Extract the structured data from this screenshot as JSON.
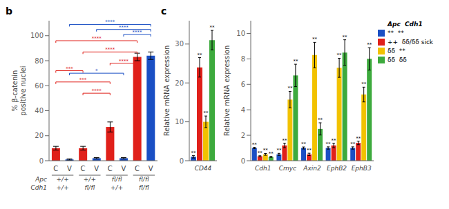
{
  "chart_data": [
    {
      "type": "bar",
      "title": "b",
      "categories": [
        "C",
        "V",
        "C",
        "V",
        "C",
        "V",
        "C",
        "V"
      ],
      "values": [
        10,
        1,
        10,
        2,
        27,
        2,
        83,
        84
      ],
      "errors": [
        1.5,
        0.5,
        1.5,
        0.5,
        4,
        0.5,
        3,
        3
      ],
      "colors": [
        "#E0201A",
        "#1A4FC4",
        "#E0201A",
        "#1A4FC4",
        "#E0201A",
        "#1A4FC4",
        "#E0201A",
        "#1A4FC4"
      ],
      "ylabel": "% β-catenin\npositive nuclei",
      "ylim": [
        0,
        112
      ],
      "yticks": [
        0,
        20,
        40,
        60,
        80,
        100
      ],
      "grid": false,
      "x_groups": [
        {
          "name": "Apc",
          "labels": [
            "+/+",
            "+/+",
            "fl/fl",
            "fl/fl"
          ]
        },
        {
          "name": "Cdh1",
          "labels": [
            "+/+",
            "fl/fl",
            "+/+",
            "fl/fl"
          ]
        }
      ],
      "annotations": [
        {
          "x1": 0,
          "x2": 2,
          "y": 72,
          "text": "***",
          "color": "#E0201A"
        },
        {
          "x1": 0,
          "x2": 4,
          "y": 63,
          "text": "***",
          "color": "#E0201A"
        },
        {
          "x1": 0,
          "x2": 6,
          "y": 96,
          "text": "****",
          "color": "#E0201A"
        },
        {
          "x1": 2,
          "x2": 4,
          "y": 54,
          "text": "****",
          "color": "#E0201A"
        },
        {
          "x1": 2,
          "x2": 6,
          "y": 87,
          "text": "****",
          "color": "#E0201A"
        },
        {
          "x1": 4,
          "x2": 6,
          "y": 78,
          "text": "****",
          "color": "#E0201A"
        },
        {
          "x1": 1,
          "x2": 7,
          "y": 109,
          "text": "****",
          "color": "#1A4FC4"
        },
        {
          "x1": 3,
          "x2": 7,
          "y": 105,
          "text": "****",
          "color": "#1A4FC4"
        },
        {
          "x1": 5,
          "x2": 7,
          "y": 101,
          "text": "****",
          "color": "#1A4FC4"
        },
        {
          "x1": 1,
          "x2": 5,
          "y": 70,
          "text": "*",
          "color": "#1A4FC4"
        }
      ]
    },
    {
      "type": "bar",
      "title": "c",
      "categories": [
        "CD44"
      ],
      "ylabel": "Relative mRNA expression",
      "ylim": [
        0,
        36
      ],
      "yticks": [
        0,
        10,
        20,
        30
      ],
      "grid": false,
      "series": [
        {
          "color": "#1A4FC4",
          "values": [
            1
          ],
          "errors": [
            0.3
          ],
          "annotations": [
            "**"
          ]
        },
        {
          "color": "#E0201A",
          "values": [
            24
          ],
          "errors": [
            2.5
          ],
          "annotations": [
            "**"
          ]
        },
        {
          "color": "#F2C200",
          "values": [
            10
          ],
          "errors": [
            1.5
          ],
          "annotations": [
            "**"
          ]
        },
        {
          "color": "#3DAA3D",
          "values": [
            31
          ],
          "errors": [
            2.5
          ],
          "annotations": [
            "**"
          ]
        }
      ]
    },
    {
      "type": "bar",
      "categories": [
        "Cdh1",
        "Cmyc",
        "Axin2",
        "EphB2",
        "EphB3"
      ],
      "ylabel": "Relative mRNA expression",
      "ylim": [
        0,
        11
      ],
      "yticks": [
        0,
        2,
        4,
        6,
        8,
        10
      ],
      "grid": false,
      "legend": "upper right",
      "legend_title": "Apc  Cdh1",
      "series": [
        {
          "name": "**  **",
          "color": "#1A4FC4",
          "values": [
            1.0,
            0.5,
            1.0,
            1.0,
            1.0
          ],
          "errors": [
            0.05,
            0.08,
            0.08,
            0.09,
            0.09
          ],
          "annotations": [
            "**",
            "**",
            "**",
            "**",
            "**"
          ]
        },
        {
          "name": "++  δδ/δδ sick",
          "color": "#E0201A",
          "values": [
            0.35,
            1.2,
            0.5,
            1.2,
            1.4
          ],
          "errors": [
            0.04,
            0.18,
            0.09,
            0.18,
            0.14
          ],
          "annotations": [
            "**",
            "**",
            "**",
            "**",
            "**"
          ]
        },
        {
          "name": "δδ  **",
          "color": "#F2C200",
          "values": [
            0.5,
            4.8,
            8.3,
            7.3,
            5.2
          ],
          "errors": [
            0.07,
            0.65,
            1.0,
            0.75,
            0.58
          ],
          "annotations": [
            "**",
            "**",
            "**",
            "**",
            "**"
          ]
        },
        {
          "name": "δδ  δδ",
          "color": "#3DAA3D",
          "values": [
            0.3,
            6.7,
            2.5,
            8.5,
            8.0
          ],
          "errors": [
            0.04,
            0.88,
            0.48,
            1.0,
            0.88
          ],
          "annotations": [
            "**",
            "**",
            "**",
            "**",
            "**"
          ]
        }
      ]
    }
  ]
}
